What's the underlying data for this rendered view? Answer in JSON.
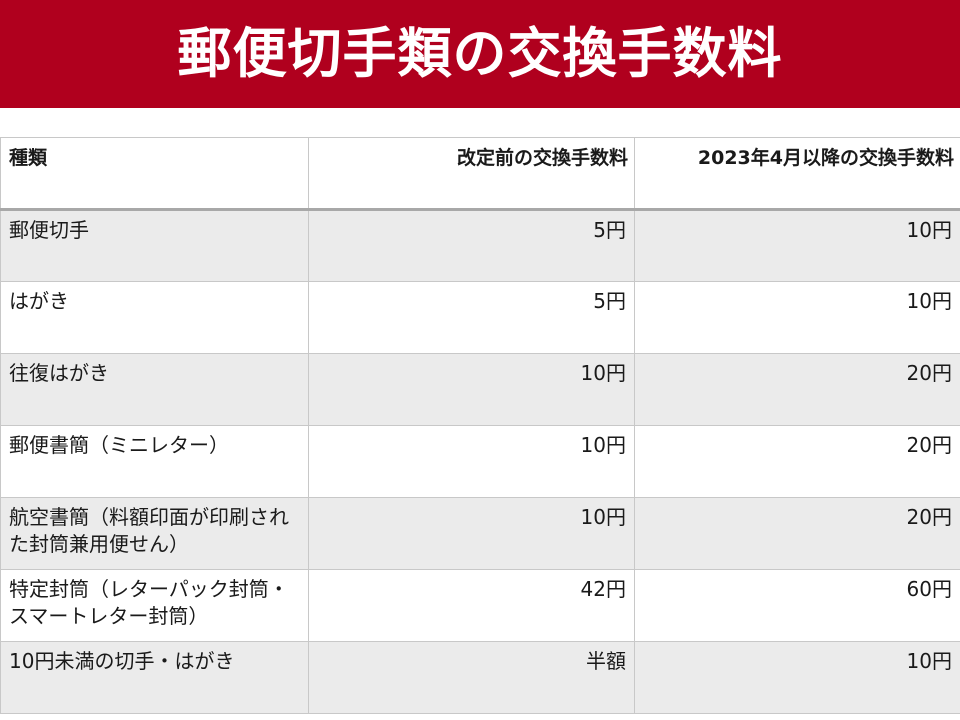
{
  "slide": {
    "title": "郵便切手類の交換手数料"
  },
  "table": {
    "headers": [
      "種類",
      "改定前の交換手数料",
      "2023年4月以降の交換手数料"
    ],
    "rows": [
      {
        "kind": "郵便切手",
        "before": "5円",
        "after": "10円"
      },
      {
        "kind": "はがき",
        "before": "5円",
        "after": "10円"
      },
      {
        "kind": "往復はがき",
        "before": "10円",
        "after": "20円"
      },
      {
        "kind": "郵便書簡（ミニレター）",
        "before": "10円",
        "after": "20円"
      },
      {
        "kind": "航空書簡（料額印面が印刷された封筒兼用便せん）",
        "before": "10円",
        "after": "20円"
      },
      {
        "kind": "特定封筒（レターパック封筒・スマートレター封筒）",
        "before": "42円",
        "after": "60円"
      },
      {
        "kind": "10円未満の切手・はがき",
        "before": "半額",
        "after": "10円"
      }
    ]
  },
  "colors": {
    "banner": "#b0001e",
    "row_shade": "#ebebeb",
    "row_plain": "#ffffff",
    "grid": "#c8c8c8"
  }
}
